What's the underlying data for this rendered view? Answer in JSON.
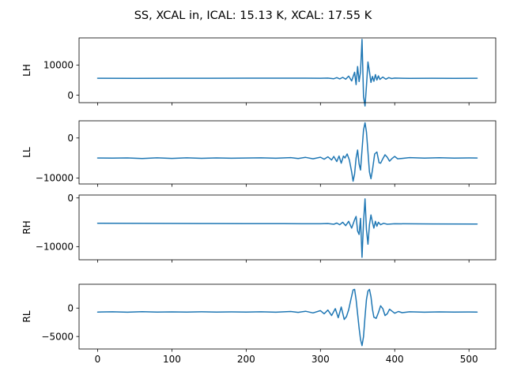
{
  "title": "SS, XCAL in, ICAL: 15.13 K, XCAL: 17.55 K",
  "colors": {
    "line": "#1f77b4",
    "axes": "#000000",
    "background": "#ffffff"
  },
  "chart_data": [
    {
      "type": "line",
      "ylabel": "LH",
      "xlim": [
        -25,
        536
      ],
      "ylim": [
        -2500,
        19000
      ],
      "x_ticks": [
        0,
        100,
        200,
        300,
        400,
        500
      ],
      "show_x_tick_labels": false,
      "y_ticks": [
        0,
        10000
      ],
      "y_tick_labels": [
        "0",
        "10000"
      ],
      "grid": false,
      "series": [
        {
          "points": [
            [
              0,
              5600
            ],
            [
              50,
              5580
            ],
            [
              100,
              5590
            ],
            [
              150,
              5600
            ],
            [
              200,
              5620
            ],
            [
              250,
              5630
            ],
            [
              280,
              5620
            ],
            [
              300,
              5600
            ],
            [
              310,
              5650
            ],
            [
              318,
              5450
            ],
            [
              322,
              5800
            ],
            [
              326,
              5400
            ],
            [
              330,
              5900
            ],
            [
              334,
              5300
            ],
            [
              338,
              6300
            ],
            [
              342,
              4700
            ],
            [
              346,
              7600
            ],
            [
              348,
              3500
            ],
            [
              350,
              9500
            ],
            [
              352,
              4500
            ],
            [
              354,
              7800
            ],
            [
              356,
              18500
            ],
            [
              358,
              -500
            ],
            [
              360,
              -3600
            ],
            [
              362,
              3000
            ],
            [
              364,
              11000
            ],
            [
              366,
              7800
            ],
            [
              368,
              4200
            ],
            [
              370,
              6200
            ],
            [
              372,
              4600
            ],
            [
              374,
              6800
            ],
            [
              376,
              5000
            ],
            [
              378,
              6400
            ],
            [
              380,
              5200
            ],
            [
              384,
              6000
            ],
            [
              388,
              5300
            ],
            [
              392,
              5800
            ],
            [
              396,
              5500
            ],
            [
              400,
              5650
            ],
            [
              420,
              5560
            ],
            [
              450,
              5600
            ],
            [
              480,
              5580
            ],
            [
              511,
              5600
            ]
          ]
        }
      ]
    },
    {
      "type": "line",
      "ylabel": "LL",
      "xlim": [
        -25,
        536
      ],
      "ylim": [
        -11500,
        4300
      ],
      "x_ticks": [
        0,
        100,
        200,
        300,
        400,
        500
      ],
      "show_x_tick_labels": false,
      "y_ticks": [
        -10000,
        0
      ],
      "y_tick_labels": [
        "−10000",
        "0"
      ],
      "grid": false,
      "series": [
        {
          "points": [
            [
              0,
              -5000
            ],
            [
              20,
              -5050
            ],
            [
              40,
              -4980
            ],
            [
              60,
              -5120
            ],
            [
              80,
              -4960
            ],
            [
              100,
              -5100
            ],
            [
              120,
              -4970
            ],
            [
              140,
              -5080
            ],
            [
              160,
              -4990
            ],
            [
              180,
              -5060
            ],
            [
              200,
              -5000
            ],
            [
              220,
              -4960
            ],
            [
              240,
              -5070
            ],
            [
              260,
              -4900
            ],
            [
              270,
              -5150
            ],
            [
              280,
              -4850
            ],
            [
              290,
              -5200
            ],
            [
              300,
              -4800
            ],
            [
              305,
              -5300
            ],
            [
              310,
              -4700
            ],
            [
              315,
              -5500
            ],
            [
              318,
              -4600
            ],
            [
              322,
              -5900
            ],
            [
              325,
              -4500
            ],
            [
              328,
              -6300
            ],
            [
              331,
              -4500
            ],
            [
              333,
              -5000
            ],
            [
              336,
              -4000
            ],
            [
              339,
              -5500
            ],
            [
              342,
              -8500
            ],
            [
              344,
              -10800
            ],
            [
              346,
              -9000
            ],
            [
              348,
              -5000
            ],
            [
              350,
              -3000
            ],
            [
              352,
              -6500
            ],
            [
              354,
              -8000
            ],
            [
              356,
              -3000
            ],
            [
              358,
              2000
            ],
            [
              360,
              3800
            ],
            [
              362,
              1500
            ],
            [
              364,
              -3500
            ],
            [
              366,
              -8500
            ],
            [
              368,
              -10200
            ],
            [
              370,
              -8000
            ],
            [
              373,
              -4000
            ],
            [
              376,
              -3500
            ],
            [
              379,
              -6200
            ],
            [
              381,
              -6300
            ],
            [
              384,
              -5200
            ],
            [
              387,
              -4200
            ],
            [
              390,
              -4800
            ],
            [
              393,
              -5800
            ],
            [
              396,
              -5200
            ],
            [
              400,
              -4600
            ],
            [
              404,
              -5200
            ],
            [
              410,
              -5100
            ],
            [
              420,
              -4900
            ],
            [
              440,
              -5050
            ],
            [
              460,
              -4950
            ],
            [
              480,
              -5020
            ],
            [
              500,
              -4980
            ],
            [
              511,
              -5000
            ]
          ]
        }
      ]
    },
    {
      "type": "line",
      "ylabel": "RH",
      "xlim": [
        -25,
        536
      ],
      "ylim": [
        -12700,
        600
      ],
      "x_ticks": [
        0,
        100,
        200,
        300,
        400,
        500
      ],
      "show_x_tick_labels": false,
      "y_ticks": [
        -10000,
        0
      ],
      "y_tick_labels": [
        "−10000",
        "0"
      ],
      "grid": false,
      "series": [
        {
          "points": [
            [
              0,
              -5200
            ],
            [
              50,
              -5230
            ],
            [
              100,
              -5240
            ],
            [
              150,
              -5260
            ],
            [
              200,
              -5280
            ],
            [
              250,
              -5290
            ],
            [
              300,
              -5300
            ],
            [
              310,
              -5250
            ],
            [
              318,
              -5400
            ],
            [
              322,
              -5150
            ],
            [
              326,
              -5500
            ],
            [
              330,
              -5000
            ],
            [
              334,
              -5700
            ],
            [
              338,
              -4800
            ],
            [
              342,
              -6200
            ],
            [
              346,
              -4500
            ],
            [
              348,
              -3800
            ],
            [
              350,
              -6800
            ],
            [
              352,
              -7500
            ],
            [
              354,
              -4200
            ],
            [
              356,
              -12200
            ],
            [
              358,
              -5000
            ],
            [
              360,
              -200
            ],
            [
              362,
              -6500
            ],
            [
              364,
              -9500
            ],
            [
              366,
              -5500
            ],
            [
              368,
              -3500
            ],
            [
              370,
              -5000
            ],
            [
              372,
              -6200
            ],
            [
              374,
              -4800
            ],
            [
              376,
              -5800
            ],
            [
              378,
              -5000
            ],
            [
              381,
              -5500
            ],
            [
              385,
              -5200
            ],
            [
              390,
              -5400
            ],
            [
              400,
              -5300
            ],
            [
              450,
              -5340
            ],
            [
              511,
              -5350
            ]
          ]
        }
      ]
    },
    {
      "type": "line",
      "ylabel": "RL",
      "xlim": [
        -25,
        536
      ],
      "ylim": [
        -7200,
        4200
      ],
      "x_ticks": [
        0,
        100,
        200,
        300,
        400,
        500
      ],
      "show_x_tick_labels": true,
      "x_tick_labels": [
        "0",
        "100",
        "200",
        "300",
        "400",
        "500"
      ],
      "y_ticks": [
        -5000,
        0
      ],
      "y_tick_labels": [
        "−5000",
        "0"
      ],
      "grid": false,
      "series": [
        {
          "points": [
            [
              0,
              -700
            ],
            [
              20,
              -650
            ],
            [
              40,
              -720
            ],
            [
              60,
              -640
            ],
            [
              80,
              -700
            ],
            [
              100,
              -660
            ],
            [
              120,
              -710
            ],
            [
              140,
              -650
            ],
            [
              160,
              -700
            ],
            [
              180,
              -660
            ],
            [
              200,
              -700
            ],
            [
              220,
              -650
            ],
            [
              240,
              -720
            ],
            [
              260,
              -600
            ],
            [
              270,
              -750
            ],
            [
              280,
              -550
            ],
            [
              290,
              -850
            ],
            [
              300,
              -450
            ],
            [
              305,
              -1000
            ],
            [
              310,
              -350
            ],
            [
              315,
              -1300
            ],
            [
              320,
              -100
            ],
            [
              324,
              -1700
            ],
            [
              328,
              200
            ],
            [
              332,
              -2000
            ],
            [
              335,
              -1500
            ],
            [
              338,
              -300
            ],
            [
              341,
              1500
            ],
            [
              344,
              3200
            ],
            [
              346,
              3300
            ],
            [
              348,
              1500
            ],
            [
              350,
              -1000
            ],
            [
              352,
              -3500
            ],
            [
              354,
              -5500
            ],
            [
              356,
              -6600
            ],
            [
              358,
              -5000
            ],
            [
              360,
              -1500
            ],
            [
              362,
              1500
            ],
            [
              364,
              3000
            ],
            [
              366,
              3300
            ],
            [
              368,
              2000
            ],
            [
              370,
              -200
            ],
            [
              372,
              -1600
            ],
            [
              375,
              -1800
            ],
            [
              378,
              -800
            ],
            [
              381,
              400
            ],
            [
              384,
              -100
            ],
            [
              387,
              -1300
            ],
            [
              390,
              -1000
            ],
            [
              393,
              -200
            ],
            [
              396,
              -500
            ],
            [
              400,
              -900
            ],
            [
              405,
              -600
            ],
            [
              410,
              -800
            ],
            [
              420,
              -650
            ],
            [
              440,
              -720
            ],
            [
              460,
              -660
            ],
            [
              480,
              -710
            ],
            [
              500,
              -680
            ],
            [
              511,
              -700
            ]
          ]
        }
      ]
    }
  ]
}
